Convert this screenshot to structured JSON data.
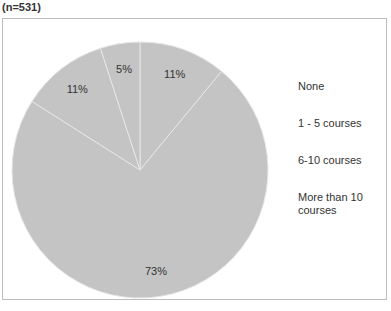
{
  "chart_data": {
    "type": "pie",
    "title": "(n=531)",
    "categories": [
      "None",
      "1 - 5 courses",
      "6-10 courses",
      "More than 10 courses"
    ],
    "values": [
      11,
      73,
      11,
      5
    ],
    "value_labels": [
      "11%",
      "73%",
      "11%",
      "5%"
    ],
    "colors": [
      "#c4c4c4",
      "#c4c4c4",
      "#c4c4c4",
      "#c4c4c4"
    ],
    "data_labels": true,
    "legend": "right"
  }
}
